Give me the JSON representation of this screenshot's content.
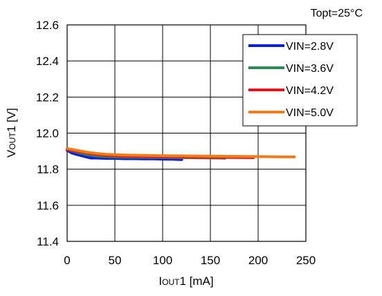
{
  "chart_data": {
    "type": "line",
    "title": "",
    "annotation": "Topt=25°C",
    "xlabel": {
      "main": "I",
      "sub": "OUT",
      "rest": "1 [mA]"
    },
    "ylabel": {
      "main": "V",
      "sub": "OUT",
      "rest": "1 [V]"
    },
    "xlim": [
      0,
      250
    ],
    "ylim": [
      11.4,
      12.6
    ],
    "x_ticks": [
      "0",
      "50",
      "100",
      "150",
      "200",
      "250"
    ],
    "y_ticks": [
      "11.4",
      "11.6",
      "11.8",
      "12.0",
      "12.2",
      "12.4",
      "12.6"
    ],
    "grid": true,
    "legend_position": "top-right",
    "series": [
      {
        "name": "VIN=2.8V",
        "color": "#0a1fd6",
        "points": [
          [
            0,
            11.905
          ],
          [
            5,
            11.89
          ],
          [
            10,
            11.882
          ],
          [
            15,
            11.875
          ],
          [
            20,
            11.868
          ],
          [
            25,
            11.862
          ],
          [
            30,
            11.862
          ],
          [
            40,
            11.86
          ],
          [
            50,
            11.86
          ],
          [
            60,
            11.858
          ],
          [
            70,
            11.858
          ],
          [
            80,
            11.857
          ],
          [
            90,
            11.857
          ],
          [
            100,
            11.856
          ],
          [
            110,
            11.855
          ],
          [
            120,
            11.853
          ]
        ]
      },
      {
        "name": "VIN=3.6V",
        "color": "#2e8b57",
        "points": [
          [
            0,
            11.91
          ],
          [
            10,
            11.895
          ],
          [
            20,
            11.882
          ],
          [
            30,
            11.874
          ],
          [
            40,
            11.87
          ],
          [
            60,
            11.867
          ],
          [
            80,
            11.866
          ],
          [
            100,
            11.865
          ],
          [
            120,
            11.864
          ],
          [
            140,
            11.863
          ],
          [
            160,
            11.862
          ],
          [
            165,
            11.861
          ]
        ]
      },
      {
        "name": "VIN=4.2V",
        "color": "#e8141c",
        "points": [
          [
            0,
            11.91
          ],
          [
            10,
            11.9
          ],
          [
            20,
            11.89
          ],
          [
            30,
            11.882
          ],
          [
            40,
            11.877
          ],
          [
            60,
            11.872
          ],
          [
            80,
            11.87
          ],
          [
            100,
            11.869
          ],
          [
            120,
            11.868
          ],
          [
            140,
            11.867
          ],
          [
            160,
            11.866
          ],
          [
            180,
            11.865
          ],
          [
            195,
            11.864
          ]
        ]
      },
      {
        "name": "VIN=5.0V",
        "color": "#f07d1a",
        "points": [
          [
            0,
            11.915
          ],
          [
            10,
            11.905
          ],
          [
            20,
            11.895
          ],
          [
            30,
            11.888
          ],
          [
            40,
            11.883
          ],
          [
            60,
            11.879
          ],
          [
            80,
            11.877
          ],
          [
            100,
            11.875
          ],
          [
            120,
            11.874
          ],
          [
            140,
            11.873
          ],
          [
            160,
            11.872
          ],
          [
            180,
            11.871
          ],
          [
            200,
            11.87
          ],
          [
            220,
            11.869
          ],
          [
            238,
            11.868
          ]
        ]
      }
    ]
  }
}
